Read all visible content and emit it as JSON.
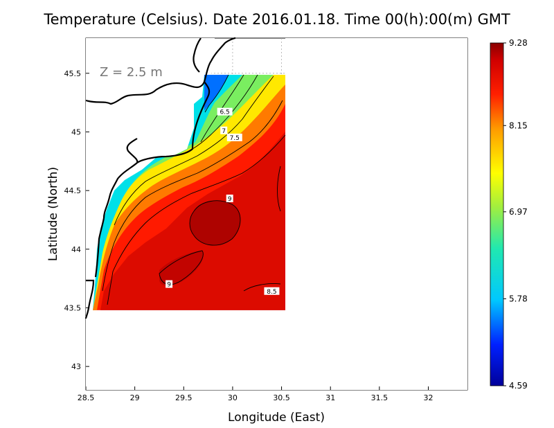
{
  "chart_data": {
    "type": "heatmap",
    "title": "Temperature (Celsius). Date 2016.01.18. Time 00(h):00(m) GMT",
    "xlabel": "Longitude (East)",
    "ylabel": "Latitude (North)",
    "xlim": [
      28.5,
      32.4
    ],
    "ylim": [
      42.8,
      45.8
    ],
    "x_ticks": [
      "28.5",
      "29",
      "29.5",
      "30",
      "30.5",
      "31",
      "31.5",
      "32"
    ],
    "y_ticks": [
      "43",
      "43.5",
      "44",
      "44.5",
      "45",
      "45.5"
    ],
    "grid": true,
    "depth_label": "Z = 2.5 m",
    "colorbar": {
      "min": 4.59,
      "max": 9.28,
      "tick_labels": [
        "9.28",
        "8.15",
        "6.97",
        "5.78",
        "4.59"
      ],
      "tick_values": [
        9.28,
        8.15,
        6.97,
        5.78,
        4.59
      ]
    },
    "data_extent": {
      "lon": [
        28.63,
        30.55
      ],
      "lat": [
        43.48,
        45.48
      ]
    },
    "contour_labels": [
      {
        "text": "6.5",
        "lon": 29.92,
        "lat": 45.17
      },
      {
        "text": "7",
        "lon": 29.91,
        "lat": 45.01
      },
      {
        "text": "7.5",
        "lon": 30.02,
        "lat": 44.95
      },
      {
        "text": "9",
        "lon": 29.97,
        "lat": 44.43
      },
      {
        "text": "9",
        "lon": 29.35,
        "lat": 43.7
      },
      {
        "text": "8.5",
        "lon": 30.4,
        "lat": 43.64
      }
    ]
  }
}
